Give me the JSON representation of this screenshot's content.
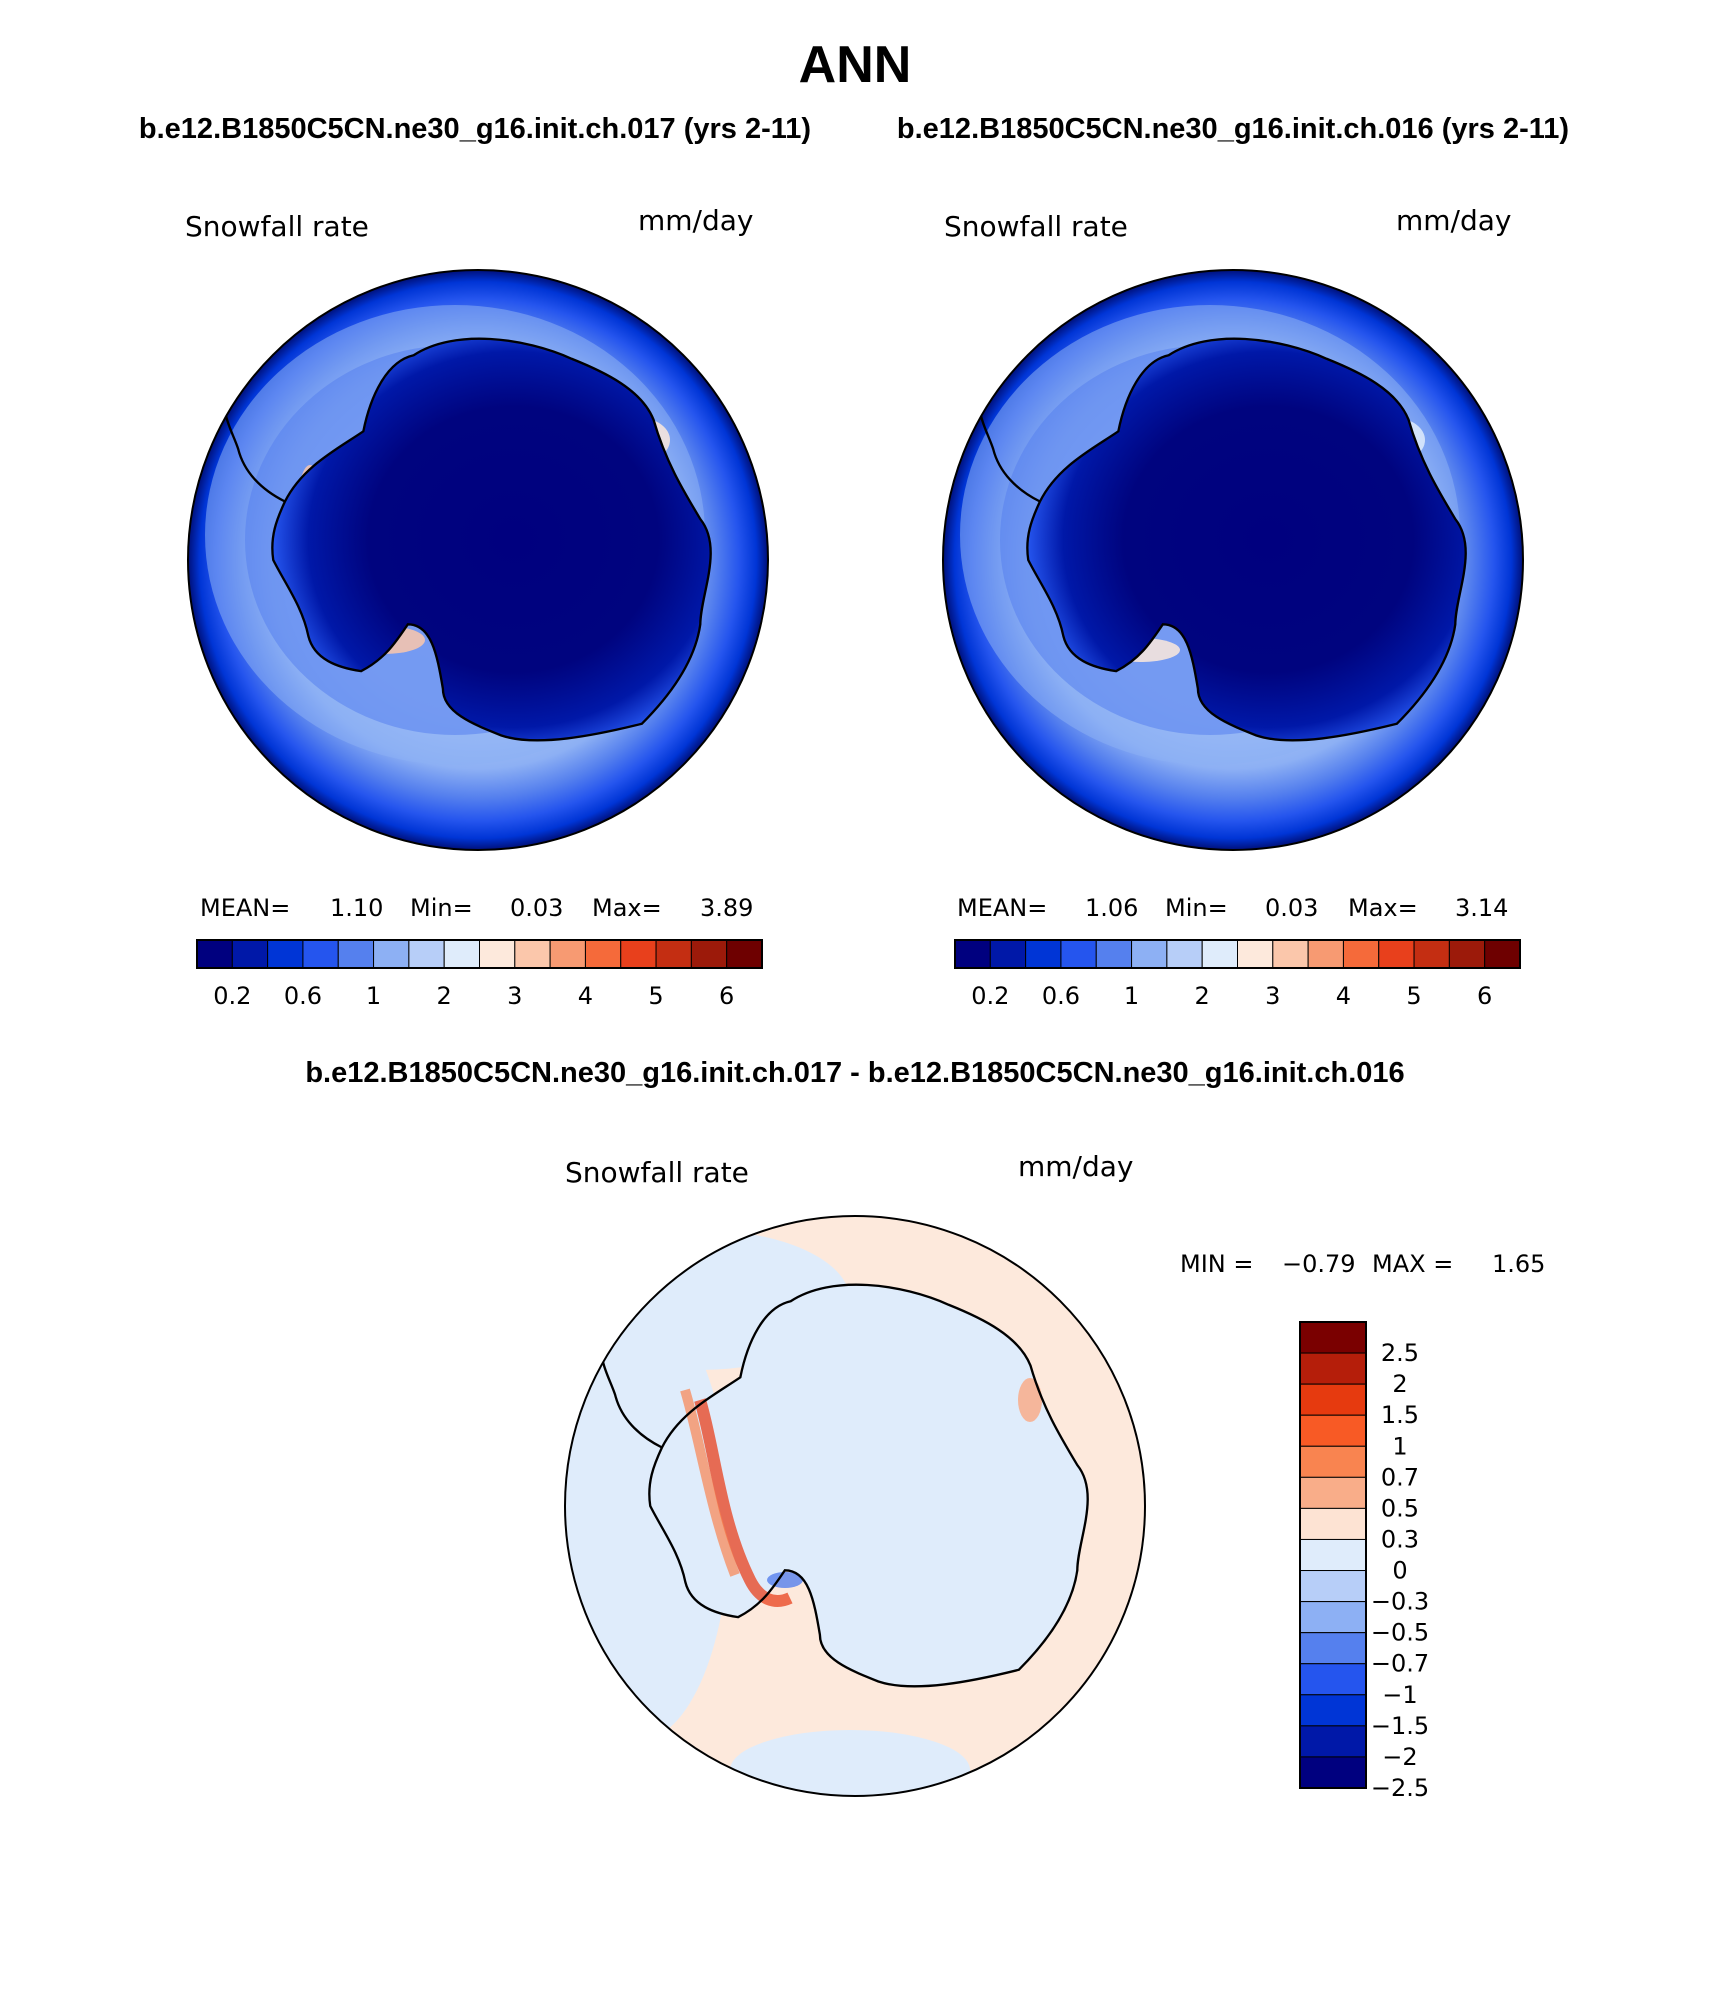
{
  "figure": {
    "title": "ANN",
    "top_left_case": "b.e12.B1850C5CN.ne30_g16.init.ch.017 (yrs 2-11)",
    "top_right_case": "b.e12.B1850C5CN.ne30_g16.init.ch.016 (yrs 2-11)",
    "diff_title": "b.e12.B1850C5CN.ne30_g16.init.ch.017 - b.e12.B1850C5CN.ne30_g16.init.ch.016"
  },
  "panels": [
    {
      "variable": "Snowfall rate",
      "units": "mm/day",
      "stats": {
        "mean_label": "MEAN=",
        "mean": "1.10",
        "min_label": "Min=",
        "min": "0.03",
        "max_label": "Max=",
        "max": "3.89"
      }
    },
    {
      "variable": "Snowfall rate",
      "units": "mm/day",
      "stats": {
        "mean_label": "MEAN=",
        "mean": "1.06",
        "min_label": "Min=",
        "min": "0.03",
        "max_label": "Max=",
        "max": "3.14"
      }
    }
  ],
  "diff_panel": {
    "variable": "Snowfall rate",
    "units": "mm/day",
    "min_label": "MIN =",
    "min": "−0.79",
    "max_label": "MAX =",
    "max": "1.65"
  },
  "colorbar_main": {
    "colors": [
      "#00007f",
      "#0018a8",
      "#0035d6",
      "#2555ee",
      "#5580ee",
      "#8db0f4",
      "#b7cef8",
      "#dfecfb",
      "#fde9dc",
      "#fbc7ab",
      "#f79a72",
      "#f56a3a",
      "#e8401c",
      "#c42e12",
      "#9c1a0a",
      "#6e0000"
    ],
    "tick_labels": [
      "0.2",
      "0.6",
      "1",
      "2",
      "3",
      "4",
      "5",
      "6"
    ]
  },
  "colorbar_diff": {
    "colors": [
      "#7a0000",
      "#b51e0a",
      "#e63a0f",
      "#f85a25",
      "#f98450",
      "#f9ad89",
      "#fde3d3",
      "#dfecfb",
      "#b7cef8",
      "#8db0f4",
      "#5580ee",
      "#2555ee",
      "#0035d6",
      "#0018a8",
      "#00007f"
    ],
    "tick_labels": [
      "2.5",
      "2",
      "1.5",
      "1",
      "0.7",
      "0.5",
      "0.3",
      "0",
      "−0.3",
      "−0.5",
      "−0.7",
      "−1",
      "−1.5",
      "−2",
      "−2.5"
    ]
  }
}
